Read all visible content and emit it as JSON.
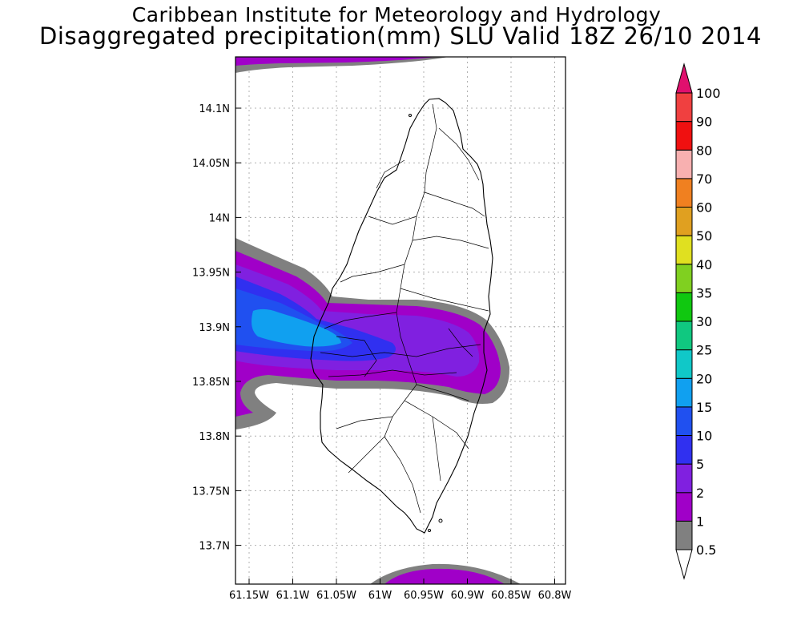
{
  "header": {
    "title": "Caribbean Institute for Meteorology and Hydrology",
    "subtitle": "Disaggregated precipitation(mm) SLU Valid 18Z 26/10 2014"
  },
  "map": {
    "region": "Saint Lucia",
    "lon_range": [
      -61.165,
      -60.79
    ],
    "lat_range": [
      13.665,
      14.145
    ],
    "gridlines": "dotted",
    "x_ticks": [
      "61.15W",
      "61.1W",
      "61.05W",
      "61W",
      "60.95W",
      "60.9W",
      "60.85W",
      "60.8W"
    ],
    "y_ticks": [
      "14.1N",
      "14.05N",
      "14N",
      "13.95N",
      "13.9N",
      "13.85N",
      "13.8N",
      "13.75N",
      "13.7N"
    ]
  },
  "colorbar": {
    "labels": [
      "0.5",
      "1",
      "2",
      "5",
      "10",
      "15",
      "20",
      "25",
      "30",
      "35",
      "40",
      "50",
      "60",
      "70",
      "80",
      "90",
      "100"
    ],
    "colors": [
      "#ffffff",
      "#808080",
      "#a000c8",
      "#8020e0",
      "#3030f0",
      "#2050f0",
      "#10a0f0",
      "#10c8c8",
      "#10c880",
      "#10c810",
      "#80d020",
      "#e0e020",
      "#e0a020",
      "#f08020",
      "#f8b0b0",
      "#f01010",
      "#f04040",
      "#e0106e"
    ]
  }
}
